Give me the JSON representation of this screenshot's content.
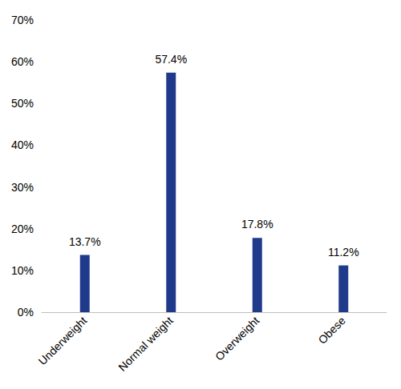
{
  "chart_data": {
    "type": "bar",
    "categories": [
      "Underweight",
      "Normal weight",
      "Overweight",
      "Obese"
    ],
    "values": [
      13.7,
      57.4,
      17.8,
      11.2
    ],
    "value_labels": [
      "13.7%",
      "57.4%",
      "17.8%",
      "11.2%"
    ],
    "color": "#1f3a8a",
    "ylim": [
      0,
      70
    ],
    "yticks": [
      {
        "value": 0,
        "label": "0%"
      },
      {
        "value": 10,
        "label": "10%"
      },
      {
        "value": 20,
        "label": "20%"
      },
      {
        "value": 30,
        "label": "30%"
      },
      {
        "value": 40,
        "label": "40%"
      },
      {
        "value": 50,
        "label": "50%"
      },
      {
        "value": 60,
        "label": "60%"
      },
      {
        "value": 70,
        "label": "70%"
      }
    ],
    "grid": false,
    "data_labels": true
  }
}
